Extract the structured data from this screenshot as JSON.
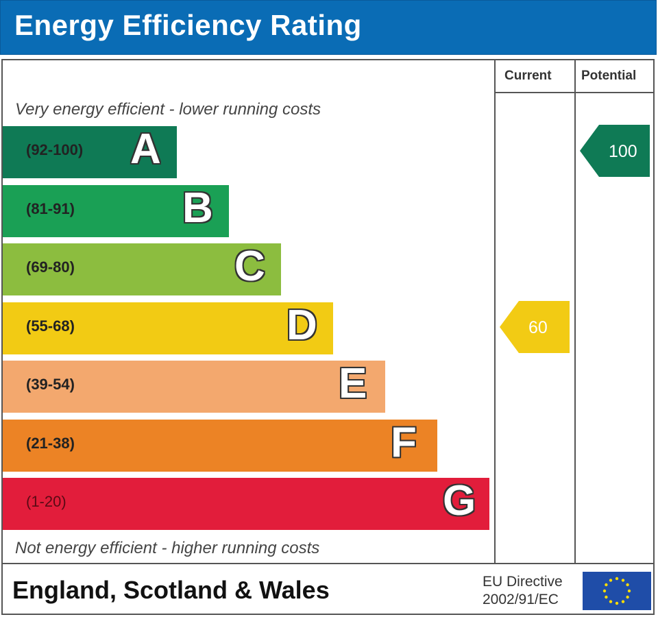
{
  "title": "Energy Efficiency Rating",
  "columns": {
    "current": "Current",
    "potential": "Potential"
  },
  "notes": {
    "top": "Very energy efficient - lower running costs",
    "bottom": "Not energy efficient - higher running costs"
  },
  "footer": {
    "country": "England, Scotland & Wales",
    "directive_line1": "EU Directive",
    "directive_line2": "2002/91/EC"
  },
  "chart_data": {
    "type": "bar",
    "title": "Energy Efficiency Rating",
    "categories": [
      "A",
      "B",
      "C",
      "D",
      "E",
      "F",
      "G"
    ],
    "ranges": [
      "(92-100)",
      "(81-91)",
      "(69-80)",
      "(55-68)",
      "(39-54)",
      "(21-38)",
      "(1-20)"
    ],
    "colors": [
      "#0f7a55",
      "#1aa055",
      "#8cbd3f",
      "#f2cb14",
      "#f3a86e",
      "#ec8325",
      "#e21d3b"
    ],
    "current": {
      "value": 60,
      "band": "D",
      "color": "#f2cb14"
    },
    "potential": {
      "value": 100,
      "band": "A",
      "color": "#0f7a55"
    }
  },
  "icons": {
    "eu_flag": "eu-flag-icon"
  }
}
